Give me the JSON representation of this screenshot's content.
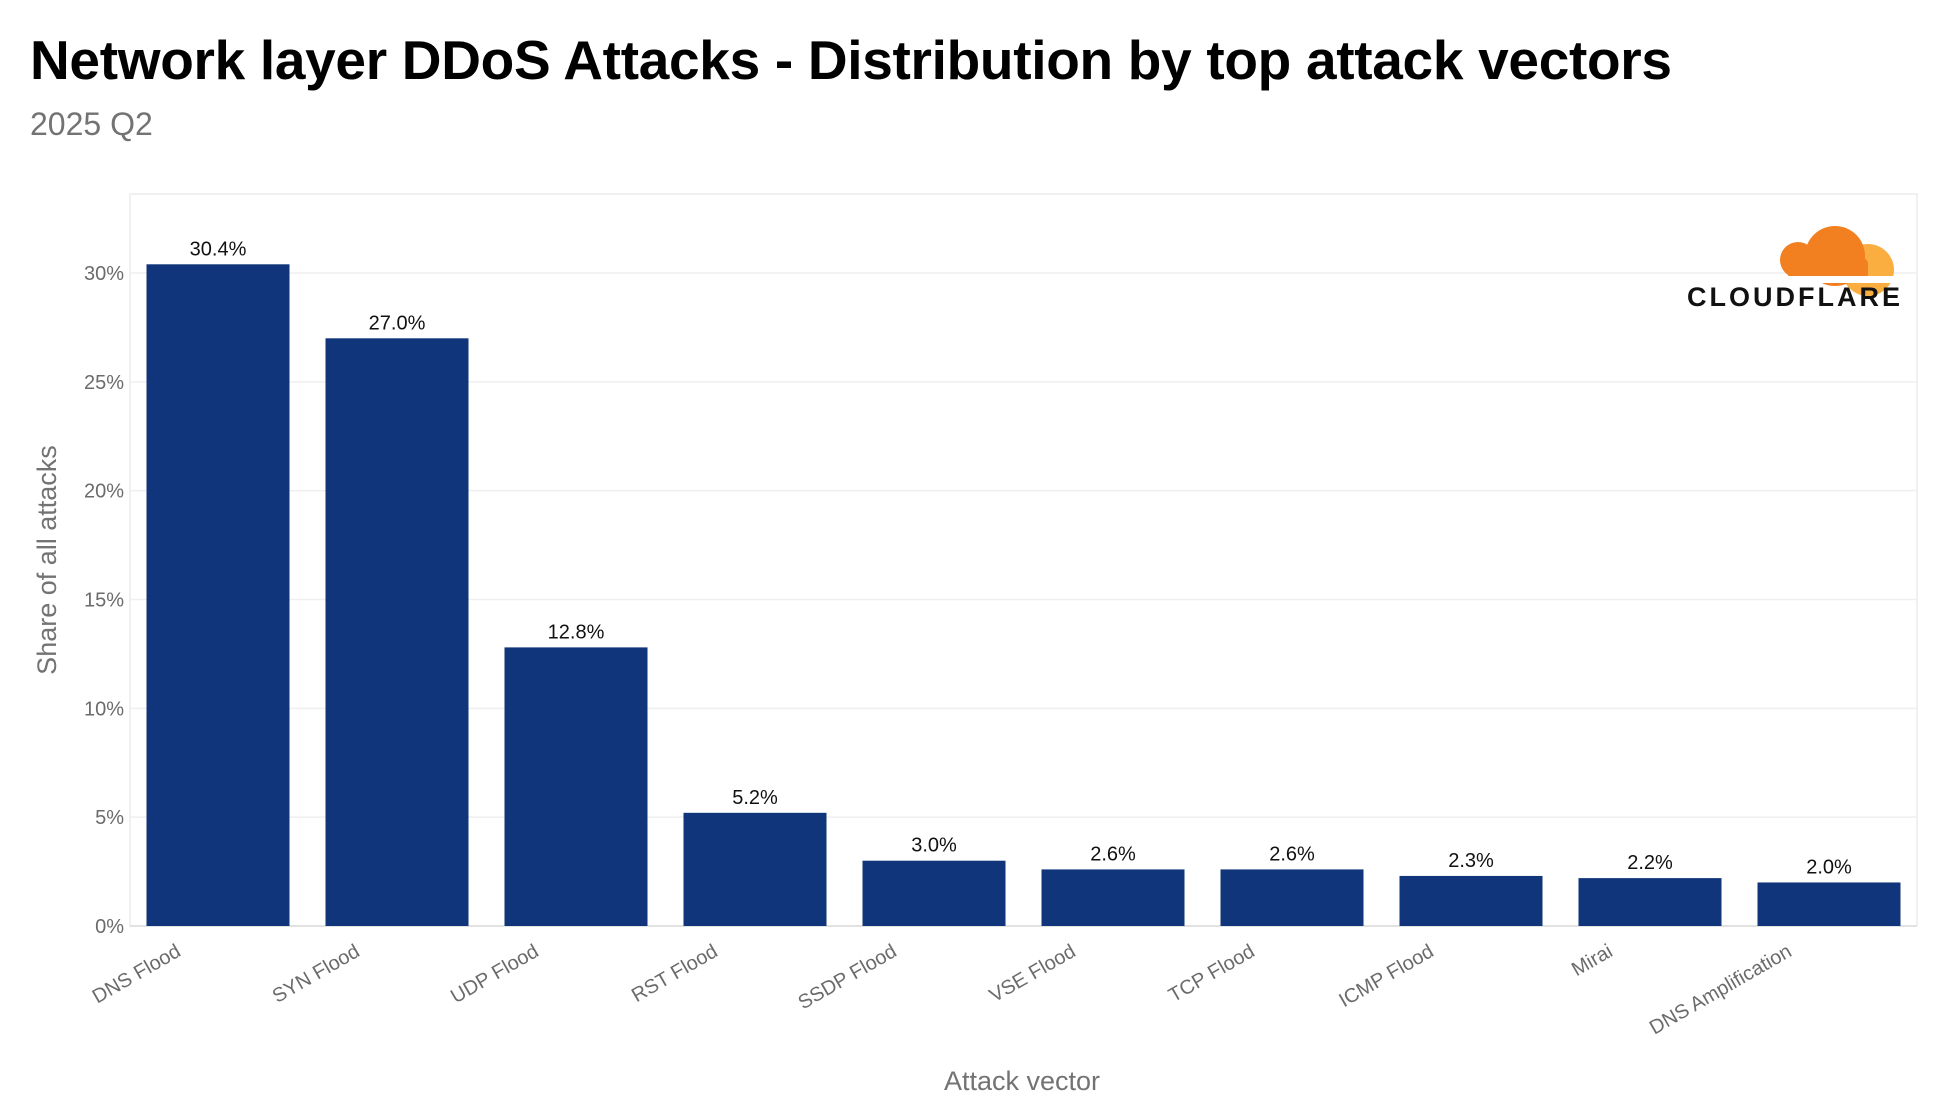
{
  "header": {
    "title": "Network layer DDoS Attacks - Distribution by top attack vectors",
    "subtitle": "2025 Q2"
  },
  "logo": {
    "text": "CLOUDFLARE",
    "icon": "cloudflare-cloud-icon",
    "colors": {
      "main": "#F38020",
      "secondary": "#FAAE40"
    }
  },
  "chart_data": {
    "type": "bar",
    "title": "Network layer DDoS Attacks - Distribution by top attack vectors",
    "subtitle": "2025 Q2",
    "xlabel": "Attack vector",
    "ylabel": "Share of all attacks",
    "categories": [
      "DNS Flood",
      "SYN Flood",
      "UDP Flood",
      "RST Flood",
      "SSDP Flood",
      "VSE Flood",
      "TCP Flood",
      "ICMP Flood",
      "Mirai",
      "DNS Amplification"
    ],
    "values": [
      30.4,
      27.0,
      12.8,
      5.2,
      3.0,
      2.6,
      2.6,
      2.3,
      2.2,
      2.0
    ],
    "value_labels": [
      "30.4%",
      "27.0%",
      "12.8%",
      "5.2%",
      "3.0%",
      "2.6%",
      "2.6%",
      "2.3%",
      "2.2%",
      "2.0%"
    ],
    "yticks": [
      0,
      5,
      10,
      15,
      20,
      25,
      30
    ],
    "ytick_labels": [
      "0%",
      "5%",
      "10%",
      "15%",
      "20%",
      "25%",
      "30%"
    ],
    "ylim": [
      0,
      33
    ],
    "grid": true,
    "legend": "none",
    "bar_color": "#10357A"
  }
}
